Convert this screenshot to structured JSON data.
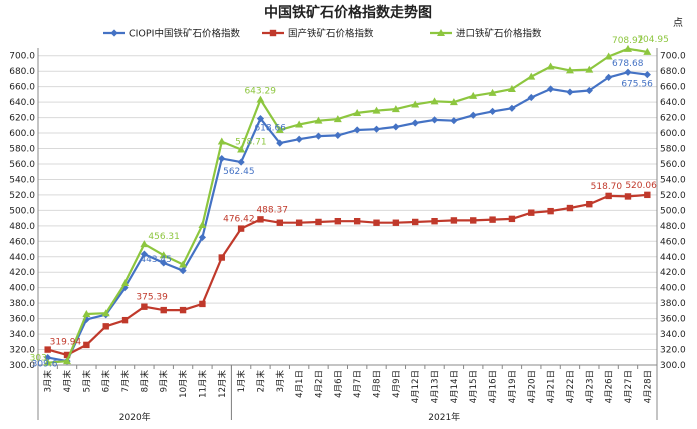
{
  "chart_data": {
    "type": "line",
    "title": "中国铁矿石价格指数走势图",
    "y_unit_right": "点",
    "ylim": [
      300,
      710
    ],
    "y_ticks": [
      300.0,
      320.0,
      340.0,
      360.0,
      380.0,
      400.0,
      420.0,
      440.0,
      460.0,
      480.0,
      500.0,
      520.0,
      540.0,
      560.0,
      580.0,
      600.0,
      620.0,
      640.0,
      660.0,
      680.0,
      700.0
    ],
    "y_tick_labels": [
      "300.0",
      "320.0",
      "340.0",
      "360.0",
      "380.0",
      "400.0",
      "420.0",
      "440.0",
      "460.0",
      "480.0",
      "500.0",
      "520.0",
      "540.0",
      "560.0",
      "580.0",
      "600.0",
      "620.0",
      "640.0",
      "660.0",
      "680.0",
      "700.0"
    ],
    "categories": [
      "3月末",
      "4月末",
      "5月末",
      "6月末",
      "7月末",
      "8月末",
      "9月末",
      "10月末",
      "11月末",
      "12月末",
      "1月末",
      "2月末",
      "3月末",
      "4月1日",
      "4月2日",
      "4月6日",
      "4月7日",
      "4月8日",
      "4月9日",
      "4月12日",
      "4月13日",
      "4月14日",
      "4月15日",
      "4月16日",
      "4月19日",
      "4月20日",
      "4月21日",
      "4月22日",
      "4月23日",
      "4月26日",
      "4月27日",
      "4月28日"
    ],
    "groups": [
      {
        "label": "2020年",
        "start": 0,
        "end": 9
      },
      {
        "label": "2021年",
        "start": 10,
        "end": 31
      }
    ],
    "legend_position": "top",
    "series": [
      {
        "name": "CIOPI中国铁矿石价格指数",
        "color": "#4472c4",
        "marker": "diamond",
        "values": [
          309.6,
          305.0,
          359.0,
          365.0,
          400.0,
          443.45,
          432.0,
          422.0,
          465.0,
          567.0,
          562.45,
          618.66,
          587.0,
          592.0,
          596.0,
          597.0,
          604.0,
          605.0,
          608.0,
          613.0,
          617.0,
          616.0,
          623.0,
          628.0,
          632.0,
          646.0,
          657.0,
          653.0,
          655.0,
          672.0,
          678.68,
          675.56
        ]
      },
      {
        "name": "国产铁矿石价格指数",
        "color": "#c0392b",
        "marker": "square",
        "values": [
          319.94,
          313.0,
          326.0,
          350.0,
          358.0,
          375.39,
          371.0,
          371.0,
          379.0,
          439.0,
          476.42,
          488.37,
          484.0,
          484.0,
          485.0,
          486.0,
          486.0,
          484.0,
          484.0,
          485.0,
          486.0,
          487.0,
          487.0,
          488.0,
          489.0,
          497.0,
          499.0,
          503.0,
          508.0,
          518.7,
          518.0,
          520.06
        ]
      },
      {
        "name": "进口铁矿石价格指数",
        "color": "#8dc63f",
        "marker": "triangle",
        "values": [
          303.0,
          305.0,
          366.0,
          367.0,
          406.0,
          456.31,
          442.0,
          430.0,
          481.0,
          589.0,
          578.71,
          643.29,
          604.0,
          611.0,
          616.0,
          618.0,
          626.0,
          629.0,
          631.0,
          637.0,
          641.0,
          640.0,
          648.0,
          652.0,
          657.0,
          673.0,
          686.0,
          681.0,
          682.0,
          699.0,
          708.92,
          704.95
        ]
      }
    ],
    "data_labels": [
      {
        "series": 1,
        "index": 0,
        "text": "319.94"
      },
      {
        "series": 0,
        "index": 0,
        "text": "309.6"
      },
      {
        "series": 2,
        "index": 0,
        "text": "303"
      },
      {
        "series": 2,
        "index": 5,
        "text": "456.31"
      },
      {
        "series": 0,
        "index": 5,
        "text": "443.45"
      },
      {
        "series": 1,
        "index": 5,
        "text": "375.39"
      },
      {
        "series": 1,
        "index": 10,
        "text": "476.42"
      },
      {
        "series": 0,
        "index": 10,
        "text": "562.45"
      },
      {
        "series": 2,
        "index": 10,
        "text": "578.71"
      },
      {
        "series": 2,
        "index": 11,
        "text": "643.29"
      },
      {
        "series": 0,
        "index": 11,
        "text": "618.66"
      },
      {
        "series": 1,
        "index": 11,
        "text": "488.37"
      },
      {
        "series": 1,
        "index": 29,
        "text": "518.70"
      },
      {
        "series": 1,
        "index": 31,
        "text": "520.06"
      },
      {
        "series": 2,
        "index": 30,
        "text": "708.92"
      },
      {
        "series": 2,
        "index": 31,
        "text": "704.95"
      },
      {
        "series": 0,
        "index": 30,
        "text": "678.68"
      },
      {
        "series": 0,
        "index": 31,
        "text": "675.56"
      }
    ]
  }
}
